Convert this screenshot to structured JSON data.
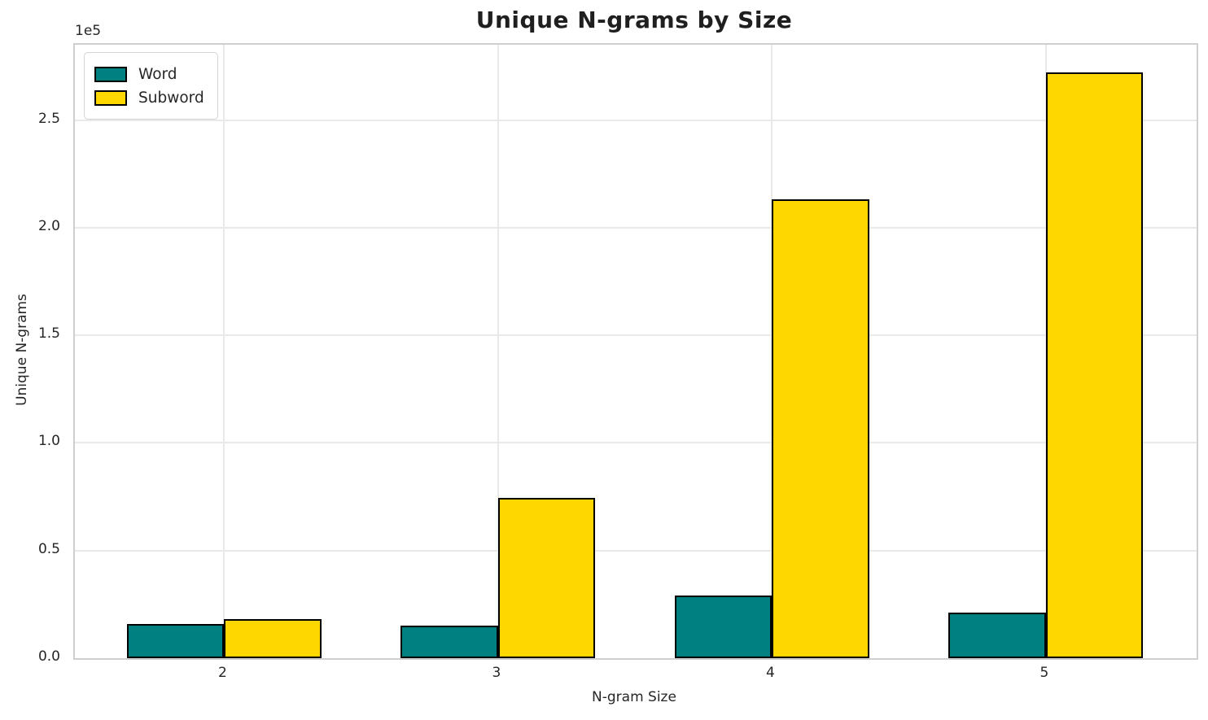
{
  "chart_data": {
    "type": "bar",
    "title": "Unique N-grams by Size",
    "xlabel": "N-gram Size",
    "ylabel": "Unique N-grams",
    "y_offset_label": "1e5",
    "categories": [
      "2",
      "3",
      "4",
      "5"
    ],
    "series": [
      {
        "name": "Word",
        "color": "#008080",
        "values": [
          16000,
          15000,
          29000,
          21000
        ]
      },
      {
        "name": "Subword",
        "color": "#FFD700",
        "values": [
          18000,
          74500,
          213000,
          272000
        ]
      }
    ],
    "ylim": [
      0,
      285000
    ],
    "yticks": [
      {
        "value": 0,
        "label": "0.0"
      },
      {
        "value": 50000,
        "label": "0.5"
      },
      {
        "value": 100000,
        "label": "1.0"
      },
      {
        "value": 150000,
        "label": "1.5"
      },
      {
        "value": 200000,
        "label": "2.0"
      },
      {
        "value": 250000,
        "label": "2.5"
      }
    ],
    "grid": true,
    "legend_position": "upper left",
    "colors": {
      "grid": "#e9e9e9",
      "spine": "#cfcfcf",
      "bar_edge": "#000000",
      "text": "#262626"
    }
  }
}
